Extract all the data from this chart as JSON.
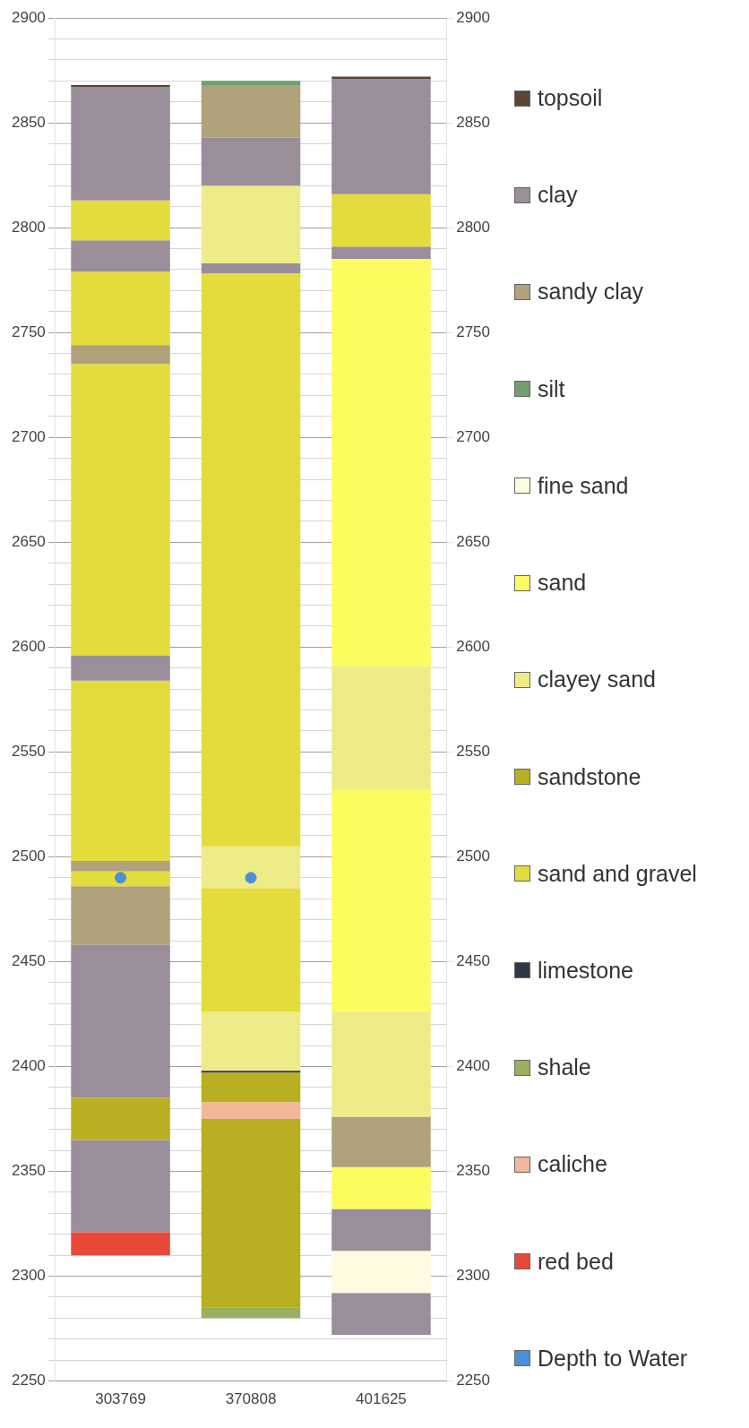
{
  "chart_data": {
    "type": "bar",
    "categories": [
      "303769",
      "370808",
      "401625"
    ],
    "ylim": [
      2250,
      2900
    ],
    "yticks": [
      2250,
      {
        "value": 2260,
        "label": null
      },
      {
        "value": 2270,
        "label": null
      },
      {
        "value": 2280,
        "label": null
      },
      {
        "value": 2290,
        "label": null
      },
      2300,
      {
        "value": 2310,
        "label": null
      },
      {
        "value": 2320,
        "label": null
      },
      {
        "value": 2330,
        "label": null
      },
      {
        "value": 2340,
        "label": null
      },
      2350,
      {
        "value": 2360,
        "label": null
      },
      {
        "value": 2370,
        "label": null
      },
      {
        "value": 2380,
        "label": null
      },
      {
        "value": 2390,
        "label": null
      },
      2400,
      {
        "value": 2410,
        "label": null
      },
      {
        "value": 2420,
        "label": null
      },
      {
        "value": 2430,
        "label": null
      },
      {
        "value": 2440,
        "label": null
      },
      2450,
      {
        "value": 2460,
        "label": null
      },
      {
        "value": 2470,
        "label": null
      },
      {
        "value": 2480,
        "label": null
      },
      {
        "value": 2490,
        "label": null
      },
      2500,
      {
        "value": 2510,
        "label": null
      },
      {
        "value": 2520,
        "label": null
      },
      {
        "value": 2530,
        "label": null
      },
      {
        "value": 2540,
        "label": null
      },
      2550,
      {
        "value": 2560,
        "label": null
      },
      {
        "value": 2570,
        "label": null
      },
      {
        "value": 2580,
        "label": null
      },
      {
        "value": 2590,
        "label": null
      },
      2600,
      {
        "value": 2610,
        "label": null
      },
      {
        "value": 2620,
        "label": null
      },
      {
        "value": 2630,
        "label": null
      },
      {
        "value": 2640,
        "label": null
      },
      2650,
      {
        "value": 2660,
        "label": null
      },
      {
        "value": 2670,
        "label": null
      },
      {
        "value": 2680,
        "label": null
      },
      {
        "value": 2690,
        "label": null
      },
      2700,
      {
        "value": 2710,
        "label": null
      },
      {
        "value": 2720,
        "label": null
      },
      {
        "value": 2730,
        "label": null
      },
      {
        "value": 2740,
        "label": null
      },
      2750,
      {
        "value": 2760,
        "label": null
      },
      {
        "value": 2770,
        "label": null
      },
      {
        "value": 2780,
        "label": null
      },
      {
        "value": 2790,
        "label": null
      },
      2800,
      {
        "value": 2810,
        "label": null
      },
      {
        "value": 2820,
        "label": null
      },
      {
        "value": 2830,
        "label": null
      },
      {
        "value": 2840,
        "label": null
      },
      2850,
      {
        "value": 2860,
        "label": null
      },
      {
        "value": 2870,
        "label": null
      },
      {
        "value": 2880,
        "label": null
      },
      {
        "value": 2890,
        "label": null
      },
      2900
    ],
    "y2lim": [
      2250,
      2900
    ],
    "y2ticks": [
      2250,
      2300,
      2350,
      2400,
      2450,
      2500,
      2550,
      2600,
      2650,
      2700,
      2750,
      2800,
      2850,
      2900
    ],
    "grid": "y",
    "legend": "right",
    "marker": "circle",
    "series": [
      {
        "name": "topsoil",
        "color": "#5a4632",
        "base": [
          2867,
          null,
          2871
        ],
        "values": [
          1,
          null,
          1
        ]
      },
      {
        "name": "clay",
        "color": "#9a8e9a",
        "base": [
          2813,
          2820,
          2816
        ],
        "values": [
          54,
          23,
          55
        ]
      },
      {
        "name": "sandy clay",
        "color": "#b0a27a",
        "base": [
          2735,
          2843,
          2352
        ],
        "values": [
          9,
          25,
          24
        ]
      },
      {
        "name": "silt",
        "color": "#6fa070",
        "base": [
          null,
          2868,
          null
        ],
        "values": [
          null,
          2,
          null
        ]
      },
      {
        "name": "fine sand",
        "color": "#fffbe0",
        "base": [
          null,
          null,
          2292
        ],
        "values": [
          null,
          null,
          20
        ]
      },
      {
        "name": "sand",
        "color": "#fcfc60",
        "base": [
          null,
          null,
          2591
        ],
        "values": [
          null,
          null,
          194
        ]
      },
      {
        "name": "clayey sand",
        "color": "#eeec88",
        "base": [
          null,
          2783,
          2532
        ],
        "values": [
          null,
          37,
          59
        ]
      },
      {
        "name": "sandstone",
        "color": "#b8b020",
        "base": [
          2365,
          2383,
          null
        ],
        "values": [
          20,
          14,
          null
        ]
      },
      {
        "name": "sand and gravel",
        "color": "#e4dc3c",
        "base": [
          2794,
          2505,
          2791
        ],
        "values": [
          19,
          273,
          25
        ]
      },
      {
        "name": "limestone",
        "color": "#303848",
        "base": [
          null,
          2397,
          null
        ],
        "values": [
          null,
          1,
          null
        ]
      },
      {
        "name": "shale",
        "color": "#9ab060",
        "base": [
          null,
          2280,
          null
        ],
        "values": [
          null,
          5,
          null
        ]
      },
      {
        "name": "caliche",
        "color": "#f0b898",
        "base": [
          null,
          2375,
          null
        ],
        "values": [
          null,
          8,
          null
        ]
      },
      {
        "name": "red bed",
        "color": "#e84838",
        "base": [
          2310,
          null,
          null
        ],
        "values": [
          11,
          null,
          null
        ]
      },
      {
        "name": "Depth to Water",
        "type": "scatter",
        "color": "#4a90d9",
        "values": [
          2490,
          2490,
          null
        ]
      },
      {
        "color": "#9a8e9a",
        "base": [
          2779,
          2778,
          2785
        ],
        "values": [
          15,
          5,
          6
        ]
      },
      {
        "color": "#9a8e9a",
        "base": [
          2584,
          null,
          2312
        ],
        "values": [
          12,
          null,
          20
        ]
      },
      {
        "color": "#9a8e9a",
        "base": [
          2385,
          null,
          2272
        ],
        "values": [
          73,
          null,
          20
        ]
      },
      {
        "color": "#9a8e9a",
        "base": [
          2321,
          null,
          null
        ],
        "values": [
          44,
          null,
          null
        ]
      },
      {
        "color": "#e4dc3c",
        "base": [
          2744,
          2426,
          null
        ],
        "values": [
          35,
          59,
          null
        ]
      },
      {
        "color": "#e4dc3c",
        "base": [
          2596,
          null,
          null
        ],
        "values": [
          139,
          null,
          null
        ]
      },
      {
        "color": "#e4dc3c",
        "base": [
          2498,
          null,
          null
        ],
        "values": [
          86,
          null,
          null
        ]
      },
      {
        "color": "#e4dc3c",
        "base": [
          2486,
          null,
          null
        ],
        "values": [
          7,
          null,
          null
        ]
      },
      {
        "color": "#b0a27a",
        "base": [
          2493,
          null,
          null
        ],
        "values": [
          5,
          null,
          null
        ]
      },
      {
        "color": "#b0a27a",
        "base": [
          2458,
          null,
          null
        ],
        "values": [
          28,
          null,
          null
        ]
      },
      {
        "color": "#eeec88",
        "base": [
          null,
          2485,
          2376
        ],
        "values": [
          null,
          20,
          50
        ]
      },
      {
        "color": "#eeec88",
        "base": [
          null,
          2398,
          null
        ],
        "values": [
          null,
          28,
          null
        ]
      },
      {
        "color": "#fcfc60",
        "base": [
          null,
          null,
          2426
        ],
        "values": [
          null,
          null,
          106
        ]
      },
      {
        "color": "#fcfc60",
        "base": [
          null,
          null,
          2332
        ],
        "values": [
          null,
          null,
          20
        ]
      },
      {
        "color": "#b8b020",
        "base": [
          null,
          2285,
          null
        ],
        "values": [
          null,
          90,
          null
        ]
      }
    ]
  }
}
